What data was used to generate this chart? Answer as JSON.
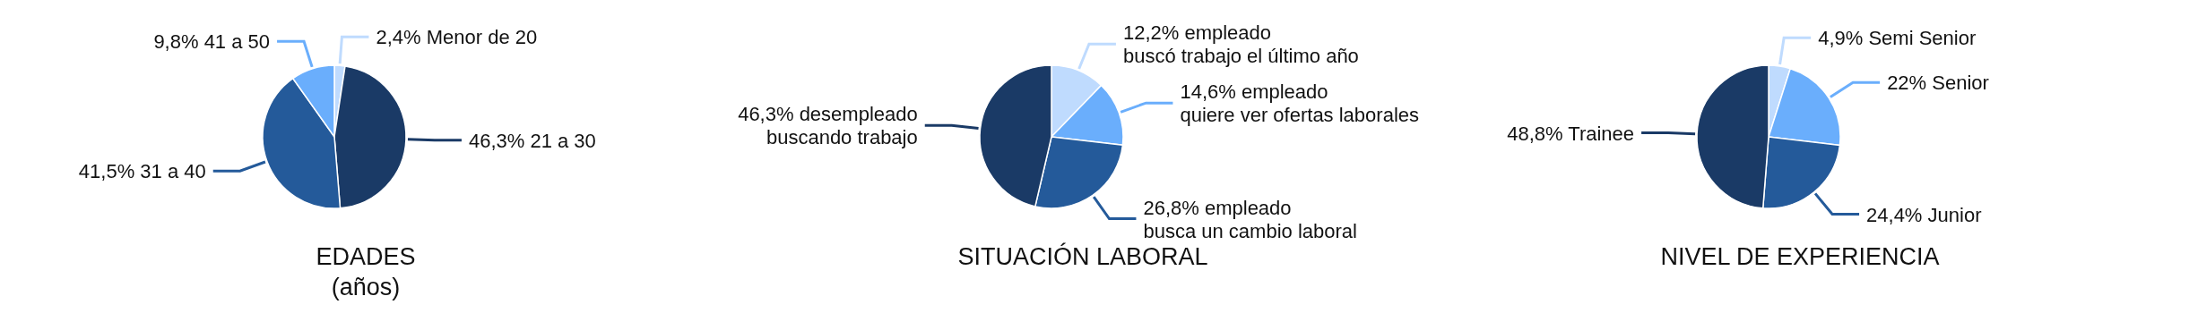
{
  "chart_data": [
    {
      "type": "pie",
      "title": "EDADES",
      "subtitle": "(años)",
      "categories": [
        "Menor de 20",
        "21 a 30",
        "31 a 40",
        "41 a 50"
      ],
      "values": [
        2.4,
        46.3,
        41.5,
        9.8
      ],
      "value_labels": [
        "2,4%",
        "46,3%",
        "41,5%",
        "9,8%"
      ],
      "colors": [
        "#bfdbfe",
        "#1a3a66",
        "#245a9a",
        "#6aaefc"
      ],
      "legend": false
    },
    {
      "type": "pie",
      "title": "SITUACIÓN LABORAL",
      "categories": [
        "empleado buscó trabajo el último año",
        "empleado quiere ver ofertas laborales",
        "empleado busca un cambio laboral",
        "desempleado buscando trabajo"
      ],
      "values": [
        12.2,
        14.6,
        26.8,
        46.3
      ],
      "value_labels": [
        "12,2%",
        "14,6%",
        "26,8%",
        "46,3%"
      ],
      "colors": [
        "#bfdbfe",
        "#6aaefc",
        "#245a9a",
        "#1a3a66"
      ],
      "legend": false
    },
    {
      "type": "pie",
      "title": "NIVEL DE EXPERIENCIA",
      "categories": [
        "Semi Senior",
        "Senior",
        "Junior",
        "Trainee"
      ],
      "values": [
        4.9,
        22,
        24.4,
        48.8
      ],
      "value_labels": [
        "4,9%",
        "22%",
        "24,4%",
        "48,8%"
      ],
      "colors": [
        "#bfdbfe",
        "#6aaefc",
        "#245a9a",
        "#1a3a66"
      ],
      "legend": false
    }
  ]
}
